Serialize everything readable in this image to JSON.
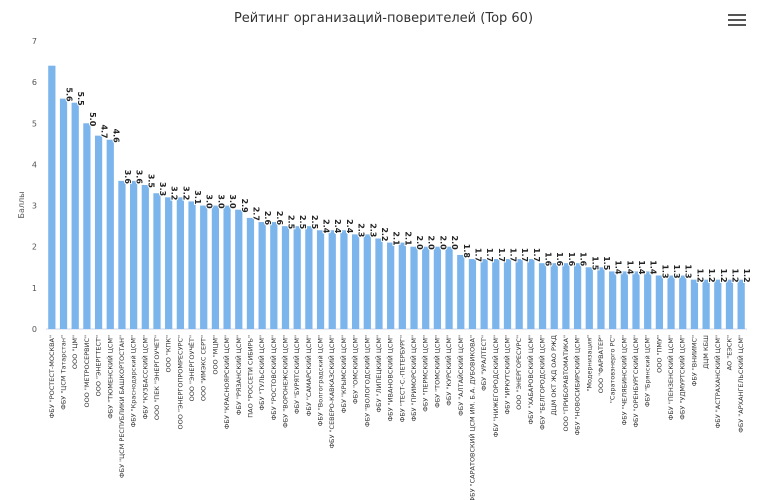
{
  "chart_data": {
    "type": "bar",
    "title": "Рейтинг организаций-поверителей (Top 60)",
    "xlabel": "",
    "ylabel": "Баллы",
    "ylim": [
      0,
      7
    ],
    "yticks": [
      0,
      1,
      2,
      3,
      4,
      5,
      6,
      7
    ],
    "grid": false,
    "bar_color": "#7cb5ec",
    "categories": [
      "ФБУ \"РОСТЕСТ-МОСКВА\"",
      "ФБУ \"ЦСМ Татарстан\"",
      "ООО \"ЦМ\"",
      "ООО \"МЕТРОСЕРВИС\"",
      "ООО \"ЭНЕРГТЕСТ\"",
      "ФБУ \"ТЮМЕНСКИЙ ЦСМ\"",
      "ФБУ \"ЦСМ РЕСПУБЛИКИ БАШКОРТОСТАН\"",
      "ФБУ \"Краснодарский ЦСМ\"",
      "ФБУ \"КУЗБАССКИЙ ЦСМ\"",
      "ООО \"ПЕК \"ЭНЕРГОУЧЕТ\"",
      "ООО \"КПК\"",
      "ООО \"ЭНЕРГОПРОМРЕСУРС\"",
      "ООО \"ЭНЕРГОУЧЁТ\"",
      "ООО \"ИМЭКС СЕРТ\"",
      "ООО \"МЦМ\"",
      "ФБУ \"КРАСНОЯРСКИЙ ЦСМ\"",
      "ФБУ \"РЯЗАНСКИЙ ЦСМ\"",
      "ПАО \"РОССЕТИ СИБИРЬ\"",
      "ФБУ \"ТУЛЬСКИЙ ЦСМ\"",
      "ФБУ \"РОСТОВСКИЙ ЦСМ\"",
      "ФБУ \"ВОРОНЕЖСКИЙ ЦСМ\"",
      "ФБУ \"БУРЯТСКИЙ ЦСМ\"",
      "ФБУ \"САМАРСКИЙ ЦСМ\"",
      "ФБУ \"Волгоградский ЦСМ\"",
      "ФБУ \"СЕВЕРО-КАВКАЗСКИЙ ЦСМ\"",
      "ФБУ \"КРЫМСКИЙ ЦСМ\"",
      "ФБУ \"ОМСКИЙ ЦСМ\"",
      "ФБУ \"ВОЛОГОДСКИЙ ЦСМ\"",
      "ФБУ \"ЛИПЕЦКИЙ ЦСМ\"",
      "ФБУ \"ИВАНОВСКИЙ ЦСМ\"",
      "ФБУ \"ТЕСТ-С.-ПЕТЕРБУРГ\"",
      "ФБУ \"ПРИМОРСКИЙ ЦСМ\"",
      "ФБУ \"ПЕРМСКИЙ ЦСМ\"",
      "ФБУ \"ТОМСКИЙ ЦСМ\"",
      "ФБУ \"КУРСКИЙ ЦСМ\"",
      "ФБУ \"АЛТАЙСКИЙ ЦСМ\"",
      "ФБУ \"САРАТОВСКИЙ ЦСМ ИМ. Б.А. ДУБОВИКОВА\"",
      "ФБУ \"УРАЛТЕСТ\"",
      "ФБУ \"НИЖЕГОРОДСКИЙ ЦСМ\"",
      "ФБУ \"ИРКУТСКИЙ ЦСМ\"",
      "ООО \"ЭНЕРГОРЕСУРС\"",
      "ФБУ \"ХАБАРОВСКИЙ ЦСМ\"",
      "ФБУ \"БЕЛГОРОДСКИЙ ЦСМ\"",
      "ДЦМ ОКТ ЖД ОАО РЖД",
      "ООО \"ПРИБОРАВТОМАТИКА\"",
      "ФБУ \"НОВОСИБИРСКИЙ ЦСМ\"",
      "\"Модернизация\"",
      "ООО \"ФАРВАТЕР\"",
      "\"Саратовэнерго РС\"",
      "ФБУ \"ЧЕЛЯБИНСКИЙ ЦСМ\"",
      "ФБУ \"ОРЕНБУРГСКИЙ ЦСМ\"",
      "ФБУ \"Брянский ЦСМ\"",
      "ООО \"ПМУ\"",
      "ФБУ \"ПЕНЗЕНСКИЙ ЦСМ\"",
      "ФБУ \"УДМУРТСКИЙ ЦСМ\"",
      "ФБУ \"ВНИИМС\"",
      "ДЦМ КБШ",
      "ФБУ \"АСТРАХАНСКИЙ ЦСМ\"",
      "АО \"ЕЭСК\"",
      "ФБУ \"АРХАНГЕЛЬСКИЙ ЦСМ\""
    ],
    "values": [
      6.4,
      5.6,
      5.5,
      5.0,
      4.7,
      4.6,
      3.6,
      3.6,
      3.5,
      3.3,
      3.2,
      3.2,
      3.1,
      3.0,
      3.0,
      3.0,
      2.9,
      2.7,
      2.6,
      2.6,
      2.5,
      2.5,
      2.5,
      2.4,
      2.4,
      2.4,
      2.3,
      2.3,
      2.2,
      2.1,
      2.1,
      2.0,
      2.0,
      2.0,
      2.0,
      1.8,
      1.7,
      1.7,
      1.7,
      1.7,
      1.7,
      1.7,
      1.6,
      1.6,
      1.6,
      1.6,
      1.5,
      1.5,
      1.4,
      1.4,
      1.4,
      1.4,
      1.3,
      1.3,
      1.3,
      1.2,
      1.2,
      1.2,
      1.2,
      1.2
    ],
    "data_labels": [
      "",
      "5.6",
      "5.5",
      "5.0",
      "4.7",
      "4.6",
      "3.6",
      "3.6",
      "3.5",
      "3.3",
      "3.2",
      "3.2",
      "3.1",
      "3.0",
      "3.0",
      "3.0",
      "2.9",
      "2.7",
      "2.6",
      "2.6",
      "2.5",
      "2.5",
      "2.5",
      "2.4",
      "2.4",
      "2.4",
      "2.3",
      "2.3",
      "2.2",
      "2.1",
      "2.1",
      "2.0",
      "2.0",
      "2.0",
      "2.0",
      "1.8",
      "1.7",
      "1.7",
      "1.7",
      "1.7",
      "1.7",
      "1.7",
      "1.6",
      "1.6",
      "1.6",
      "1.6",
      "1.5",
      "1.5",
      "1.4",
      "1.4",
      "1.4",
      "1.4",
      "1.3",
      "1.3",
      "1.3",
      "1.2",
      "1.2",
      "1.2",
      "1.2",
      "1.2"
    ]
  },
  "menu": {
    "icon": "hamburger-menu-icon"
  }
}
